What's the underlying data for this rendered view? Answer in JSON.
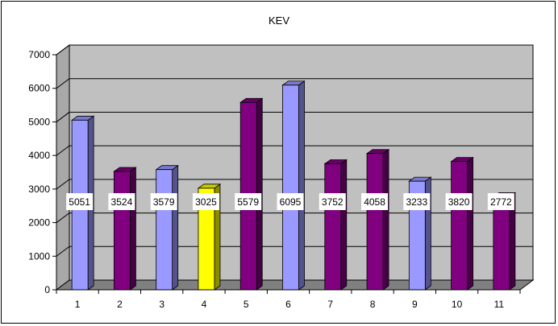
{
  "chart_data": {
    "type": "bar",
    "title": "KEV",
    "categories": [
      "1",
      "2",
      "3",
      "4",
      "5",
      "6",
      "7",
      "8",
      "9",
      "10",
      "11"
    ],
    "values": [
      5051,
      3524,
      3579,
      3025,
      5579,
      6095,
      3752,
      4058,
      3233,
      3820,
      2772
    ],
    "ylim": [
      0,
      7000
    ],
    "yticks": [
      0,
      1000,
      2000,
      3000,
      4000,
      5000,
      6000,
      7000
    ],
    "grid": true,
    "legend": "none",
    "bar_colors": [
      "#9999ff",
      "#800080",
      "#9999ff",
      "#ffff00",
      "#800080",
      "#9999ff",
      "#800080",
      "#800080",
      "#9999ff",
      "#800080",
      "#800080"
    ],
    "wall_color": "#c0c0c0",
    "floor_color": "#808080"
  }
}
